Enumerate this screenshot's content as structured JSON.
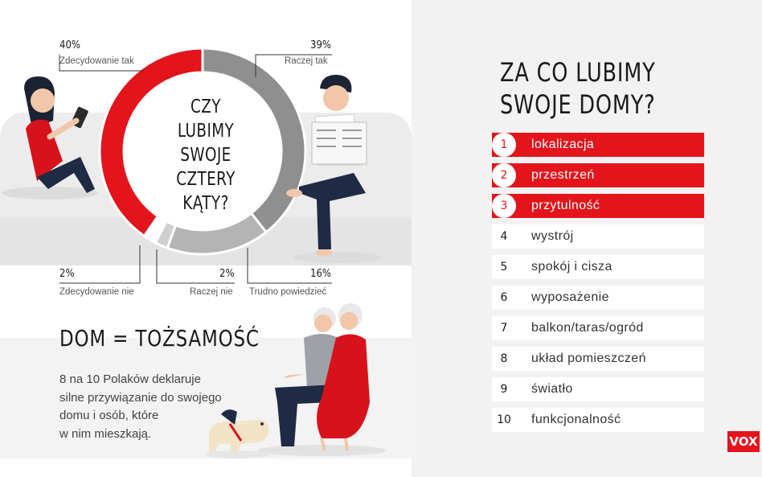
{
  "chart_data": {
    "type": "pie",
    "title": "CZY LUBIMY SWOJE CZTERY KĄTY?",
    "title_lines": [
      "CZY",
      "LUBIMY",
      "SWOJE",
      "CZTERY",
      "KĄTY?"
    ],
    "categories": [
      "Zdecydowanie tak",
      "Raczej tak",
      "Trudno powiedzieć",
      "Raczej nie",
      "Zdecydowanie nie"
    ],
    "values": [
      40,
      39,
      16,
      2,
      2
    ],
    "value_labels": [
      "40%",
      "39%",
      "16%",
      "2%",
      "2%"
    ],
    "colors": [
      "#e3141b",
      "#8f8f8f",
      "#b4b4b4",
      "#cfcfcf",
      "#ffffff"
    ]
  },
  "identity": {
    "title": "DOM = TOŻSAMOŚĆ",
    "text_lines": [
      "8 na 10 Polaków deklaruje",
      "silne przywiązanie do swojego",
      "domu i osób, które",
      "w nim mieszkają."
    ]
  },
  "ranking": {
    "title_lines": [
      "ZA CO LUBIMY",
      "SWOJE DOMY?"
    ],
    "items": [
      {
        "num": "1",
        "label": "lokalizacja",
        "highlight": true
      },
      {
        "num": "2",
        "label": "przestrzeń",
        "highlight": true
      },
      {
        "num": "3",
        "label": "przytulność",
        "highlight": true
      },
      {
        "num": "4",
        "label": "wystrój",
        "highlight": false
      },
      {
        "num": "5",
        "label": "spokój i cisza",
        "highlight": false
      },
      {
        "num": "6",
        "label": "wyposażenie",
        "highlight": false
      },
      {
        "num": "7",
        "label": "balkon/taras/ogród",
        "highlight": false
      },
      {
        "num": "8",
        "label": "układ pomieszczeń",
        "highlight": false
      },
      {
        "num": "9",
        "label": "światło",
        "highlight": false
      },
      {
        "num": "10",
        "label": "funkcjonalność",
        "highlight": false
      }
    ]
  },
  "brand": {
    "logo": "VOX",
    "accent_color": "#e3141b"
  }
}
